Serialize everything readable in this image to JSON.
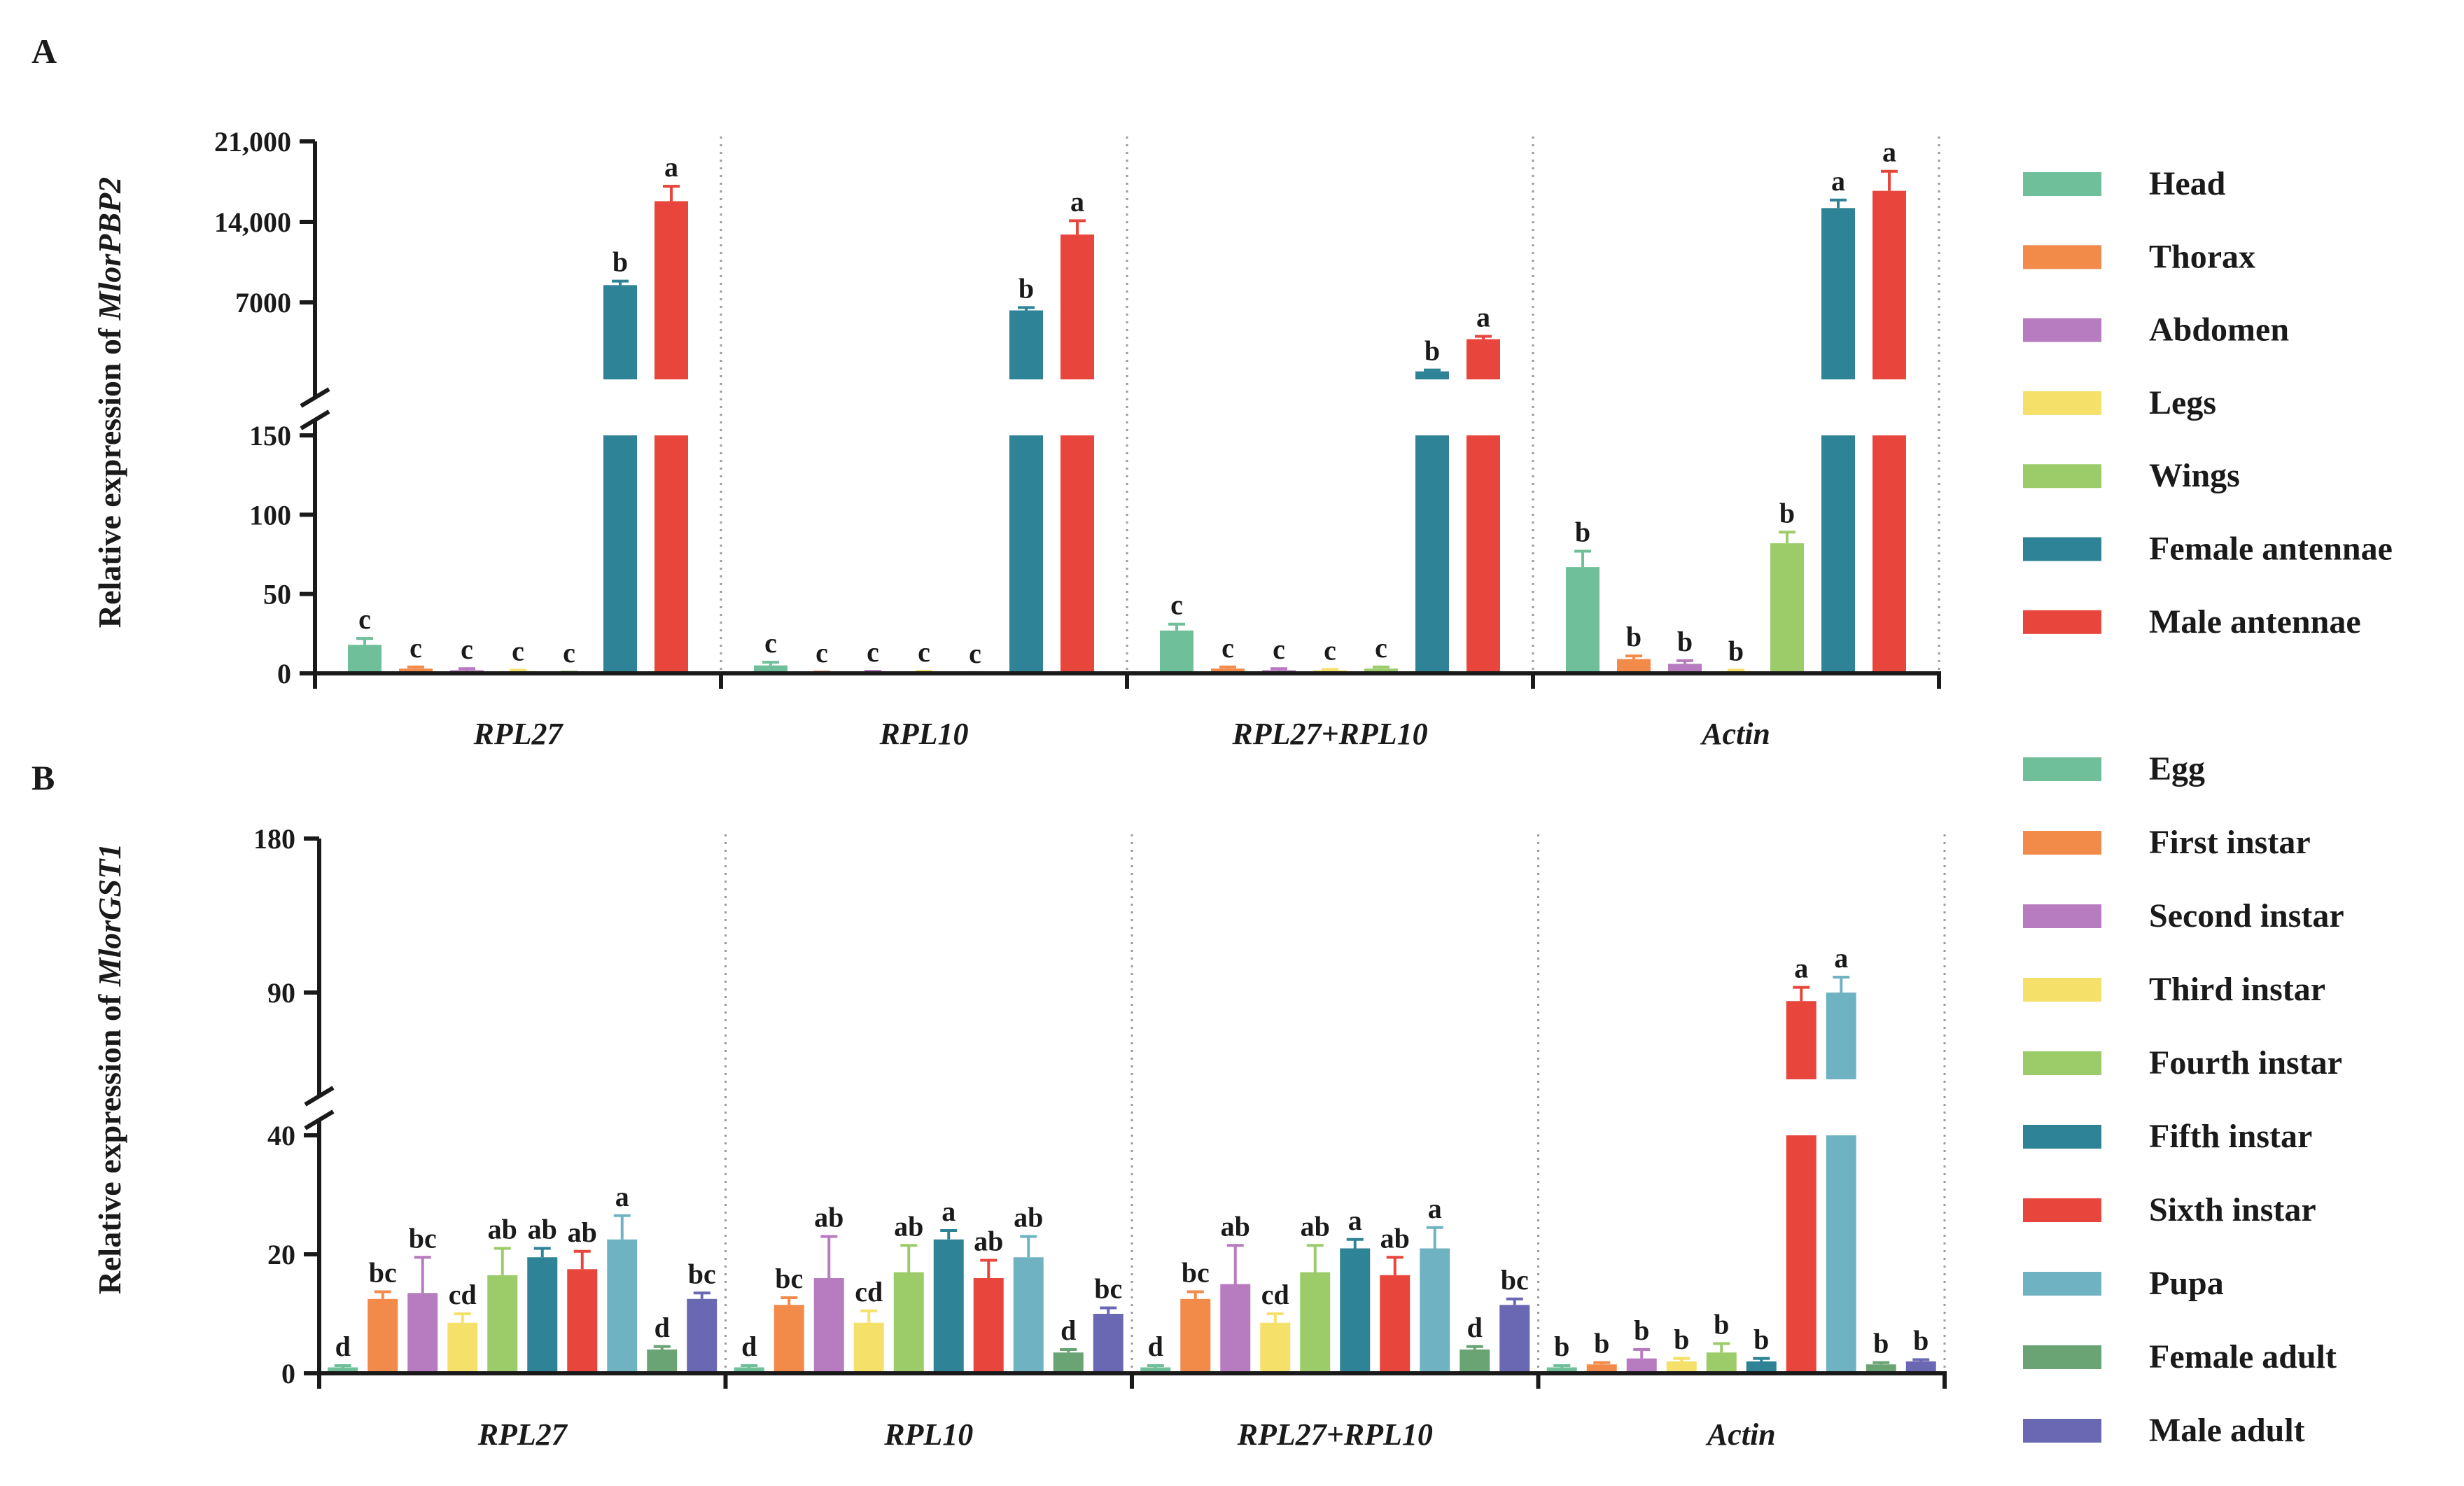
{
  "chart_data": [
    {
      "type": "bar",
      "panel": "A",
      "ylabel_prefix": "Relative expression of ",
      "ylabel_gene": "MlorPBP2",
      "categories": [
        "RPL27",
        "RPL10",
        "RPL27+RPL10",
        "Actin"
      ],
      "y_axis": {
        "broken": true,
        "lower_ticks": [
          0,
          50,
          100,
          150
        ],
        "lower_tick_labels": [
          "0",
          "50",
          "100",
          "150"
        ],
        "upper_ticks": [
          7000,
          14000,
          21000
        ],
        "upper_tick_labels": [
          "7000",
          "14,000",
          "21,000"
        ]
      },
      "series": [
        {
          "name": "Head",
          "color": "#6fbf9a",
          "values": [
            18,
            5,
            27,
            67
          ],
          "errors": [
            4,
            2,
            4,
            10
          ],
          "letters": [
            "c",
            "c",
            "c",
            "b"
          ]
        },
        {
          "name": "Thorax",
          "color": "#f28a4a",
          "values": [
            3,
            0.5,
            3,
            9
          ],
          "errors": [
            1,
            0.3,
            1,
            2
          ],
          "letters": [
            "c",
            "c",
            "c",
            "b"
          ]
        },
        {
          "name": "Abdomen",
          "color": "#b77bbf",
          "values": [
            2,
            1,
            2,
            6
          ],
          "errors": [
            1,
            0.3,
            1,
            2
          ],
          "letters": [
            "c",
            "c",
            "c",
            "b"
          ]
        },
        {
          "name": "Legs",
          "color": "#f5e06a",
          "values": [
            1.5,
            1,
            2,
            1.5
          ],
          "errors": [
            0.5,
            0.3,
            0.5,
            0.5
          ],
          "letters": [
            "c",
            "c",
            "c",
            "b"
          ]
        },
        {
          "name": "Wings",
          "color": "#9ccc6a",
          "values": [
            0.5,
            0.3,
            3,
            82
          ],
          "errors": [
            0.3,
            0.2,
            1,
            7
          ],
          "letters": [
            "c",
            "c",
            "c",
            "b"
          ]
        },
        {
          "name": "Female antennae",
          "color": "#2f8396",
          "values": [
            8500,
            6300,
            1000,
            15200
          ],
          "errors": [
            350,
            250,
            120,
            700
          ],
          "letters": [
            "b",
            "b",
            "b",
            "a"
          ]
        },
        {
          "name": "Male antennae",
          "color": "#e8463c",
          "values": [
            15800,
            12900,
            3800,
            16700
          ],
          "errors": [
            1300,
            1200,
            250,
            1700
          ],
          "letters": [
            "a",
            "a",
            "a",
            "a"
          ]
        }
      ]
    },
    {
      "type": "bar",
      "panel": "B",
      "ylabel_prefix": "Relative expression of ",
      "ylabel_gene": "MlorGST1",
      "categories": [
        "RPL27",
        "RPL10",
        "RPL27+RPL10",
        "Actin"
      ],
      "y_axis": {
        "broken": true,
        "lower_ticks": [
          0,
          20,
          40
        ],
        "lower_tick_labels": [
          "0",
          "20",
          "40"
        ],
        "upper_ticks": [
          90,
          180
        ],
        "upper_tick_labels": [
          "90",
          "180"
        ]
      },
      "series": [
        {
          "name": "Egg",
          "color": "#6fbf9a",
          "values": [
            1,
            1,
            1,
            1
          ],
          "errors": [
            0.3,
            0.3,
            0.3,
            0.3
          ],
          "letters": [
            "d",
            "d",
            "d",
            "b"
          ]
        },
        {
          "name": "First instar",
          "color": "#f28a4a",
          "values": [
            12.5,
            11.5,
            12.5,
            1.5
          ],
          "errors": [
            1.2,
            1.2,
            1.2,
            0.3
          ],
          "letters": [
            "bc",
            "bc",
            "bc",
            "b"
          ]
        },
        {
          "name": "Second instar",
          "color": "#b77bbf",
          "values": [
            13.5,
            16,
            15,
            2.5
          ],
          "errors": [
            6,
            7,
            6.5,
            1.5
          ],
          "letters": [
            "bc",
            "ab",
            "ab",
            "b"
          ]
        },
        {
          "name": "Third instar",
          "color": "#f5e06a",
          "values": [
            8.5,
            8.5,
            8.5,
            2
          ],
          "errors": [
            1.5,
            2,
            1.5,
            0.5
          ],
          "letters": [
            "cd",
            "cd",
            "cd",
            "b"
          ]
        },
        {
          "name": "Fourth instar",
          "color": "#9ccc6a",
          "values": [
            16.5,
            17,
            17,
            3.5
          ],
          "errors": [
            4.5,
            4.5,
            4.5,
            1.5
          ],
          "letters": [
            "ab",
            "ab",
            "ab",
            "b"
          ]
        },
        {
          "name": "Fifth instar",
          "color": "#2f8396",
          "values": [
            19.5,
            22.5,
            21,
            2
          ],
          "errors": [
            1.5,
            1.5,
            1.5,
            0.5
          ],
          "letters": [
            "ab",
            "a",
            "a",
            "b"
          ]
        },
        {
          "name": "Sixth instar",
          "color": "#e8463c",
          "values": [
            17.5,
            16,
            16.5,
            85
          ],
          "errors": [
            3,
            3,
            3,
            8
          ],
          "letters": [
            "ab",
            "ab",
            "ab",
            "a"
          ]
        },
        {
          "name": "Pupa",
          "color": "#6fb3c3",
          "values": [
            22.5,
            19.5,
            21,
            90
          ],
          "errors": [
            4,
            3.5,
            3.5,
            9
          ],
          "letters": [
            "a",
            "ab",
            "a",
            "a"
          ]
        },
        {
          "name": "Female adult",
          "color": "#6aa374",
          "values": [
            4,
            3.5,
            4,
            1.5
          ],
          "errors": [
            0.5,
            0.5,
            0.5,
            0.3
          ],
          "letters": [
            "d",
            "d",
            "d",
            "b"
          ]
        },
        {
          "name": "Male adult",
          "color": "#6b68b3",
          "values": [
            12.5,
            10,
            11.5,
            2
          ],
          "errors": [
            1,
            1,
            1,
            0.3
          ],
          "letters": [
            "bc",
            "bc",
            "bc",
            "b"
          ]
        }
      ]
    }
  ]
}
